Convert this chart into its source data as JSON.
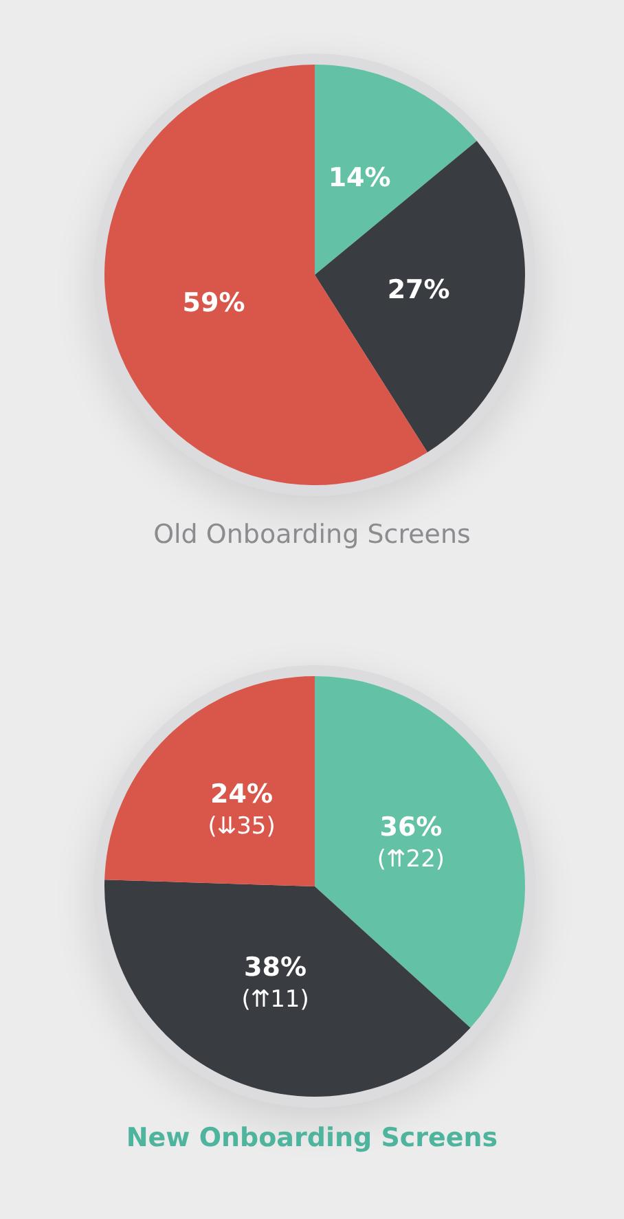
{
  "chart_data": [
    {
      "type": "pie",
      "title": "Old Onboarding Screens",
      "categories": [
        null,
        null,
        null
      ],
      "values": [
        14,
        27,
        59
      ],
      "colors": [
        "#63c1a5",
        "#393c41",
        "#d9564a"
      ],
      "value_labels": [
        "14%",
        "27%",
        "59%"
      ]
    },
    {
      "type": "pie",
      "title": "New Onboarding Screens",
      "categories": [
        null,
        null,
        null
      ],
      "values": [
        36,
        38,
        24
      ],
      "colors": [
        "#63c1a5",
        "#393c41",
        "#d9564a"
      ],
      "value_labels": [
        "36%\n(⇈22)",
        "38%\n(⇈11)",
        "24%\n(⇊35)"
      ]
    }
  ]
}
